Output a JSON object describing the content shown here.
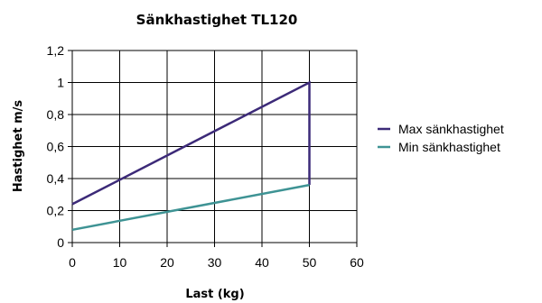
{
  "chart_data": {
    "type": "line",
    "title": "Sänkhastighet  TL120",
    "xlabel": "Last (kg)",
    "ylabel": "Hastighet m/s",
    "xlim": [
      0,
      60
    ],
    "ylim": [
      0,
      1.2
    ],
    "x_ticks": [
      "0",
      "10",
      "20",
      "30",
      "40",
      "50",
      "60"
    ],
    "y_ticks": [
      "0",
      "0,2",
      "0,4",
      "0,6",
      "0,8",
      "1",
      "1,2"
    ],
    "grid": true,
    "legend_position": "right",
    "series": [
      {
        "name": "Max sänkhastighet",
        "color": "#3c2a78",
        "points": [
          [
            0,
            0.24
          ],
          [
            50,
            1.0
          ],
          [
            50,
            0.36
          ]
        ]
      },
      {
        "name": "Min sänkhastighet",
        "color": "#3e9394",
        "points": [
          [
            0,
            0.08
          ],
          [
            50,
            0.36
          ]
        ]
      }
    ]
  }
}
